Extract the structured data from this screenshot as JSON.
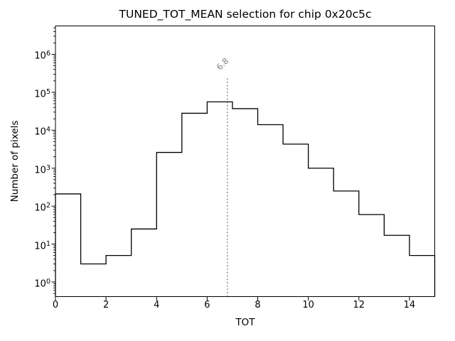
{
  "chart_data": {
    "type": "step-histogram",
    "title": "TUNED_TOT_MEAN selection for chip 0x20c5c",
    "xlabel": "TOT",
    "ylabel": "Number of pixels",
    "x_scale": "linear",
    "y_scale": "log",
    "xlim": [
      0,
      15
    ],
    "ylim": [
      0.413,
      5600000
    ],
    "xticks": [
      0,
      2,
      4,
      6,
      8,
      10,
      12,
      14
    ],
    "ytick_exponents": [
      0,
      1,
      2,
      3,
      4,
      5,
      6
    ],
    "bin_edges": [
      0,
      1,
      2,
      3,
      4,
      5,
      6,
      7,
      8,
      9,
      10,
      11,
      12,
      13,
      14,
      15
    ],
    "counts": [
      210,
      3,
      5,
      25,
      2600,
      28000,
      56000,
      37000,
      14000,
      4300,
      1000,
      250,
      60,
      17,
      5
    ],
    "grid": false,
    "legend": null,
    "colors": {
      "line": "#000000",
      "spine": "#000000",
      "tick": "#000000",
      "text": "#000000",
      "vline": "#7f7f7f",
      "annotation": "#7f7f7f",
      "background": "#ffffff"
    },
    "vline": {
      "x": 6.8,
      "label": "6.8",
      "style": "dotted",
      "top_value": 235000
    }
  }
}
